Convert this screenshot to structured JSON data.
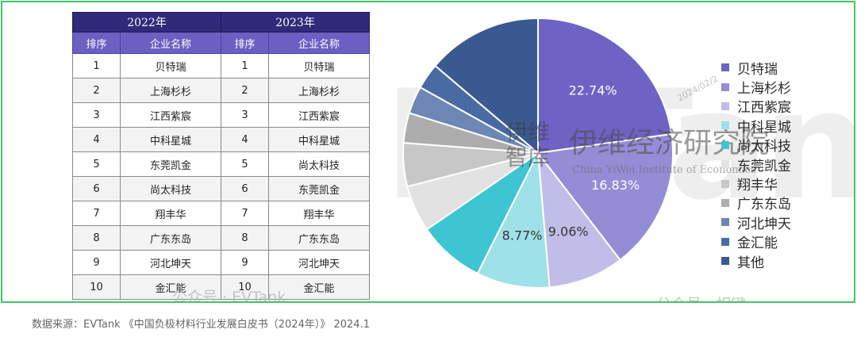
{
  "table": {
    "year_2022": "2022年",
    "year_2023": "2023年",
    "col_rank": "排序",
    "col_company": "企业名称",
    "rows": [
      {
        "rank_2022": "1",
        "company_2022": "贝特瑞",
        "rank_2023": "1",
        "company_2023": "贝特瑞"
      },
      {
        "rank_2022": "2",
        "company_2022": "上海杉杉",
        "rank_2023": "2",
        "company_2023": "上海杉杉"
      },
      {
        "rank_2022": "3",
        "company_2022": "江西紫宸",
        "rank_2023": "3",
        "company_2023": "江西紫宸"
      },
      {
        "rank_2022": "4",
        "company_2022": "中科星城",
        "rank_2023": "4",
        "company_2023": "中科星城"
      },
      {
        "rank_2022": "5",
        "company_2022": "东莞凯金",
        "rank_2023": "5",
        "company_2023": "尚太科技"
      },
      {
        "rank_2022": "6",
        "company_2022": "尚太科技",
        "rank_2023": "6",
        "company_2023": "东莞凯金"
      },
      {
        "rank_2022": "7",
        "company_2022": "翔丰华",
        "rank_2023": "7",
        "company_2023": "翔丰华"
      },
      {
        "rank_2022": "8",
        "company_2022": "广东东岛",
        "rank_2023": "8",
        "company_2023": "广东东岛"
      },
      {
        "rank_2022": "9",
        "company_2022": "河北坤天",
        "rank_2023": "9",
        "company_2023": "河北坤天"
      },
      {
        "rank_2022": "10",
        "company_2022": "金汇能",
        "rank_2023": "10",
        "company_2023": "金汇能"
      }
    ]
  },
  "chart_data": {
    "type": "pie",
    "series": [
      {
        "name": "贝特瑞",
        "value": 22.74,
        "label": "22.74%",
        "color": "#6e62c4"
      },
      {
        "name": "上海杉杉",
        "value": 16.83,
        "label": "16.83%",
        "color": "#958cd6"
      },
      {
        "name": "江西紫宸",
        "value": 9.06,
        "label": "9.06%",
        "color": "#c2bde8"
      },
      {
        "name": "中科星城",
        "value": 8.77,
        "label": "8.77%",
        "color": "#9fe1e8"
      },
      {
        "name": "尚太科技",
        "value": 8.0,
        "label": "",
        "color": "#3ec5d3"
      },
      {
        "name": "东莞凯金",
        "value": 5.6,
        "label": "",
        "color": "#e2e2e2"
      },
      {
        "name": "翔丰华",
        "value": 5.2,
        "label": "",
        "color": "#c7c7c7"
      },
      {
        "name": "广东东岛",
        "value": 3.6,
        "label": "",
        "color": "#adadad"
      },
      {
        "name": "河北坤天",
        "value": 3.3,
        "label": "",
        "color": "#6d87b5"
      },
      {
        "name": "金汇能",
        "value": 3.1,
        "label": "",
        "color": "#4a6aa3"
      },
      {
        "name": "其他",
        "value": 13.79,
        "label": "",
        "color": "#3a5990"
      }
    ]
  },
  "watermarks": {
    "institute_cn": "伊维经济研究院",
    "institute_en": "China YiWei Institute of Economics",
    "logo_cn": "伊维智库",
    "brand": "EVTank",
    "wechat_left": "公众号 · EVTank",
    "wechat_right": "公众号 · 相键",
    "date_stamp": "2024/02/2",
    "research_fragment": "研究院",
    "economics_fragment": "te of Economics"
  },
  "footer": {
    "source": "数据来源：EVTank 《中国负极材料行业发展白皮书（2024年）》 2024.1"
  }
}
